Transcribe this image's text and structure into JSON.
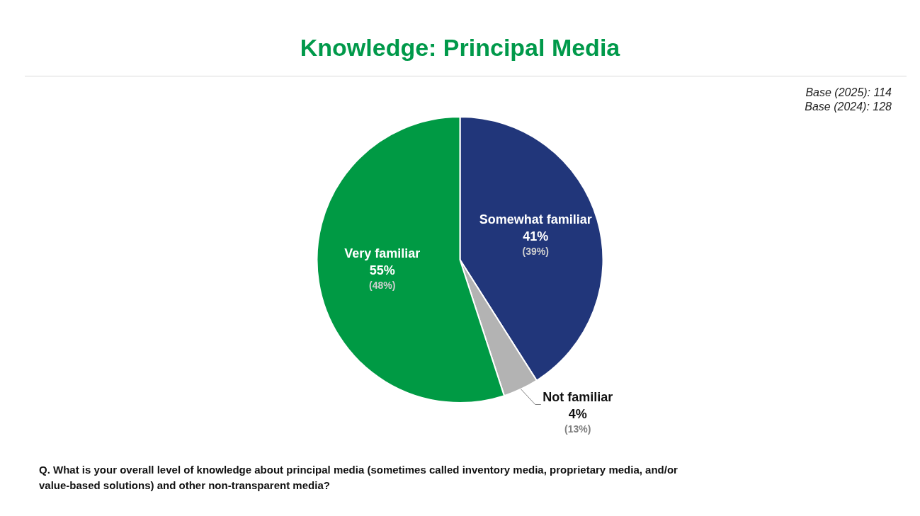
{
  "chart_data": {
    "type": "pie",
    "title": "Knowledge: Principal Media",
    "categories": [
      "Somewhat familiar",
      "Not familiar",
      "Very familiar"
    ],
    "values": [
      41,
      4,
      55
    ],
    "value_labels": [
      "41%",
      "4%",
      "55%"
    ],
    "colors": [
      "#21367a",
      "#b3b3b3",
      "#009a44"
    ],
    "annotations": [
      "Base (2025): 114",
      "Base (2024): 128",
      {
        "text": "(39%)",
        "x": "Somewhat familiar"
      },
      {
        "text": "(13%)",
        "x": "Not familiar"
      },
      {
        "text": "(48%)",
        "x": "Very familiar"
      },
      "Q. What is your overall level of knowledge about principal media (sometimes called inventory media, proprietary media, and/or value-based solutions) and other non-transparent media?"
    ]
  }
}
